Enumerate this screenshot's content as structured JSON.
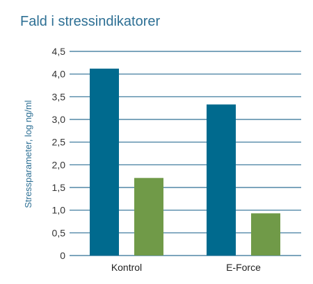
{
  "chart_data": {
    "type": "bar",
    "title": "Fald i stressindikatorer",
    "xlabel": "",
    "ylabel": "Stressparameter, log ng/ml",
    "categories": [
      "Kontrol",
      "E-Force"
    ],
    "series": [
      {
        "values": [
          4.12,
          3.33
        ],
        "color": "#006a8e"
      },
      {
        "values": [
          1.71,
          0.93
        ],
        "color": "#709a48"
      }
    ],
    "ylim": [
      0,
      4.5
    ],
    "yticks": [
      "0",
      "0,5",
      "1,0",
      "1,5",
      "2,0",
      "2,5",
      "3,0",
      "3,5",
      "4,0",
      "4,5"
    ],
    "grid": true,
    "gridline_color": "#2d6f94"
  }
}
